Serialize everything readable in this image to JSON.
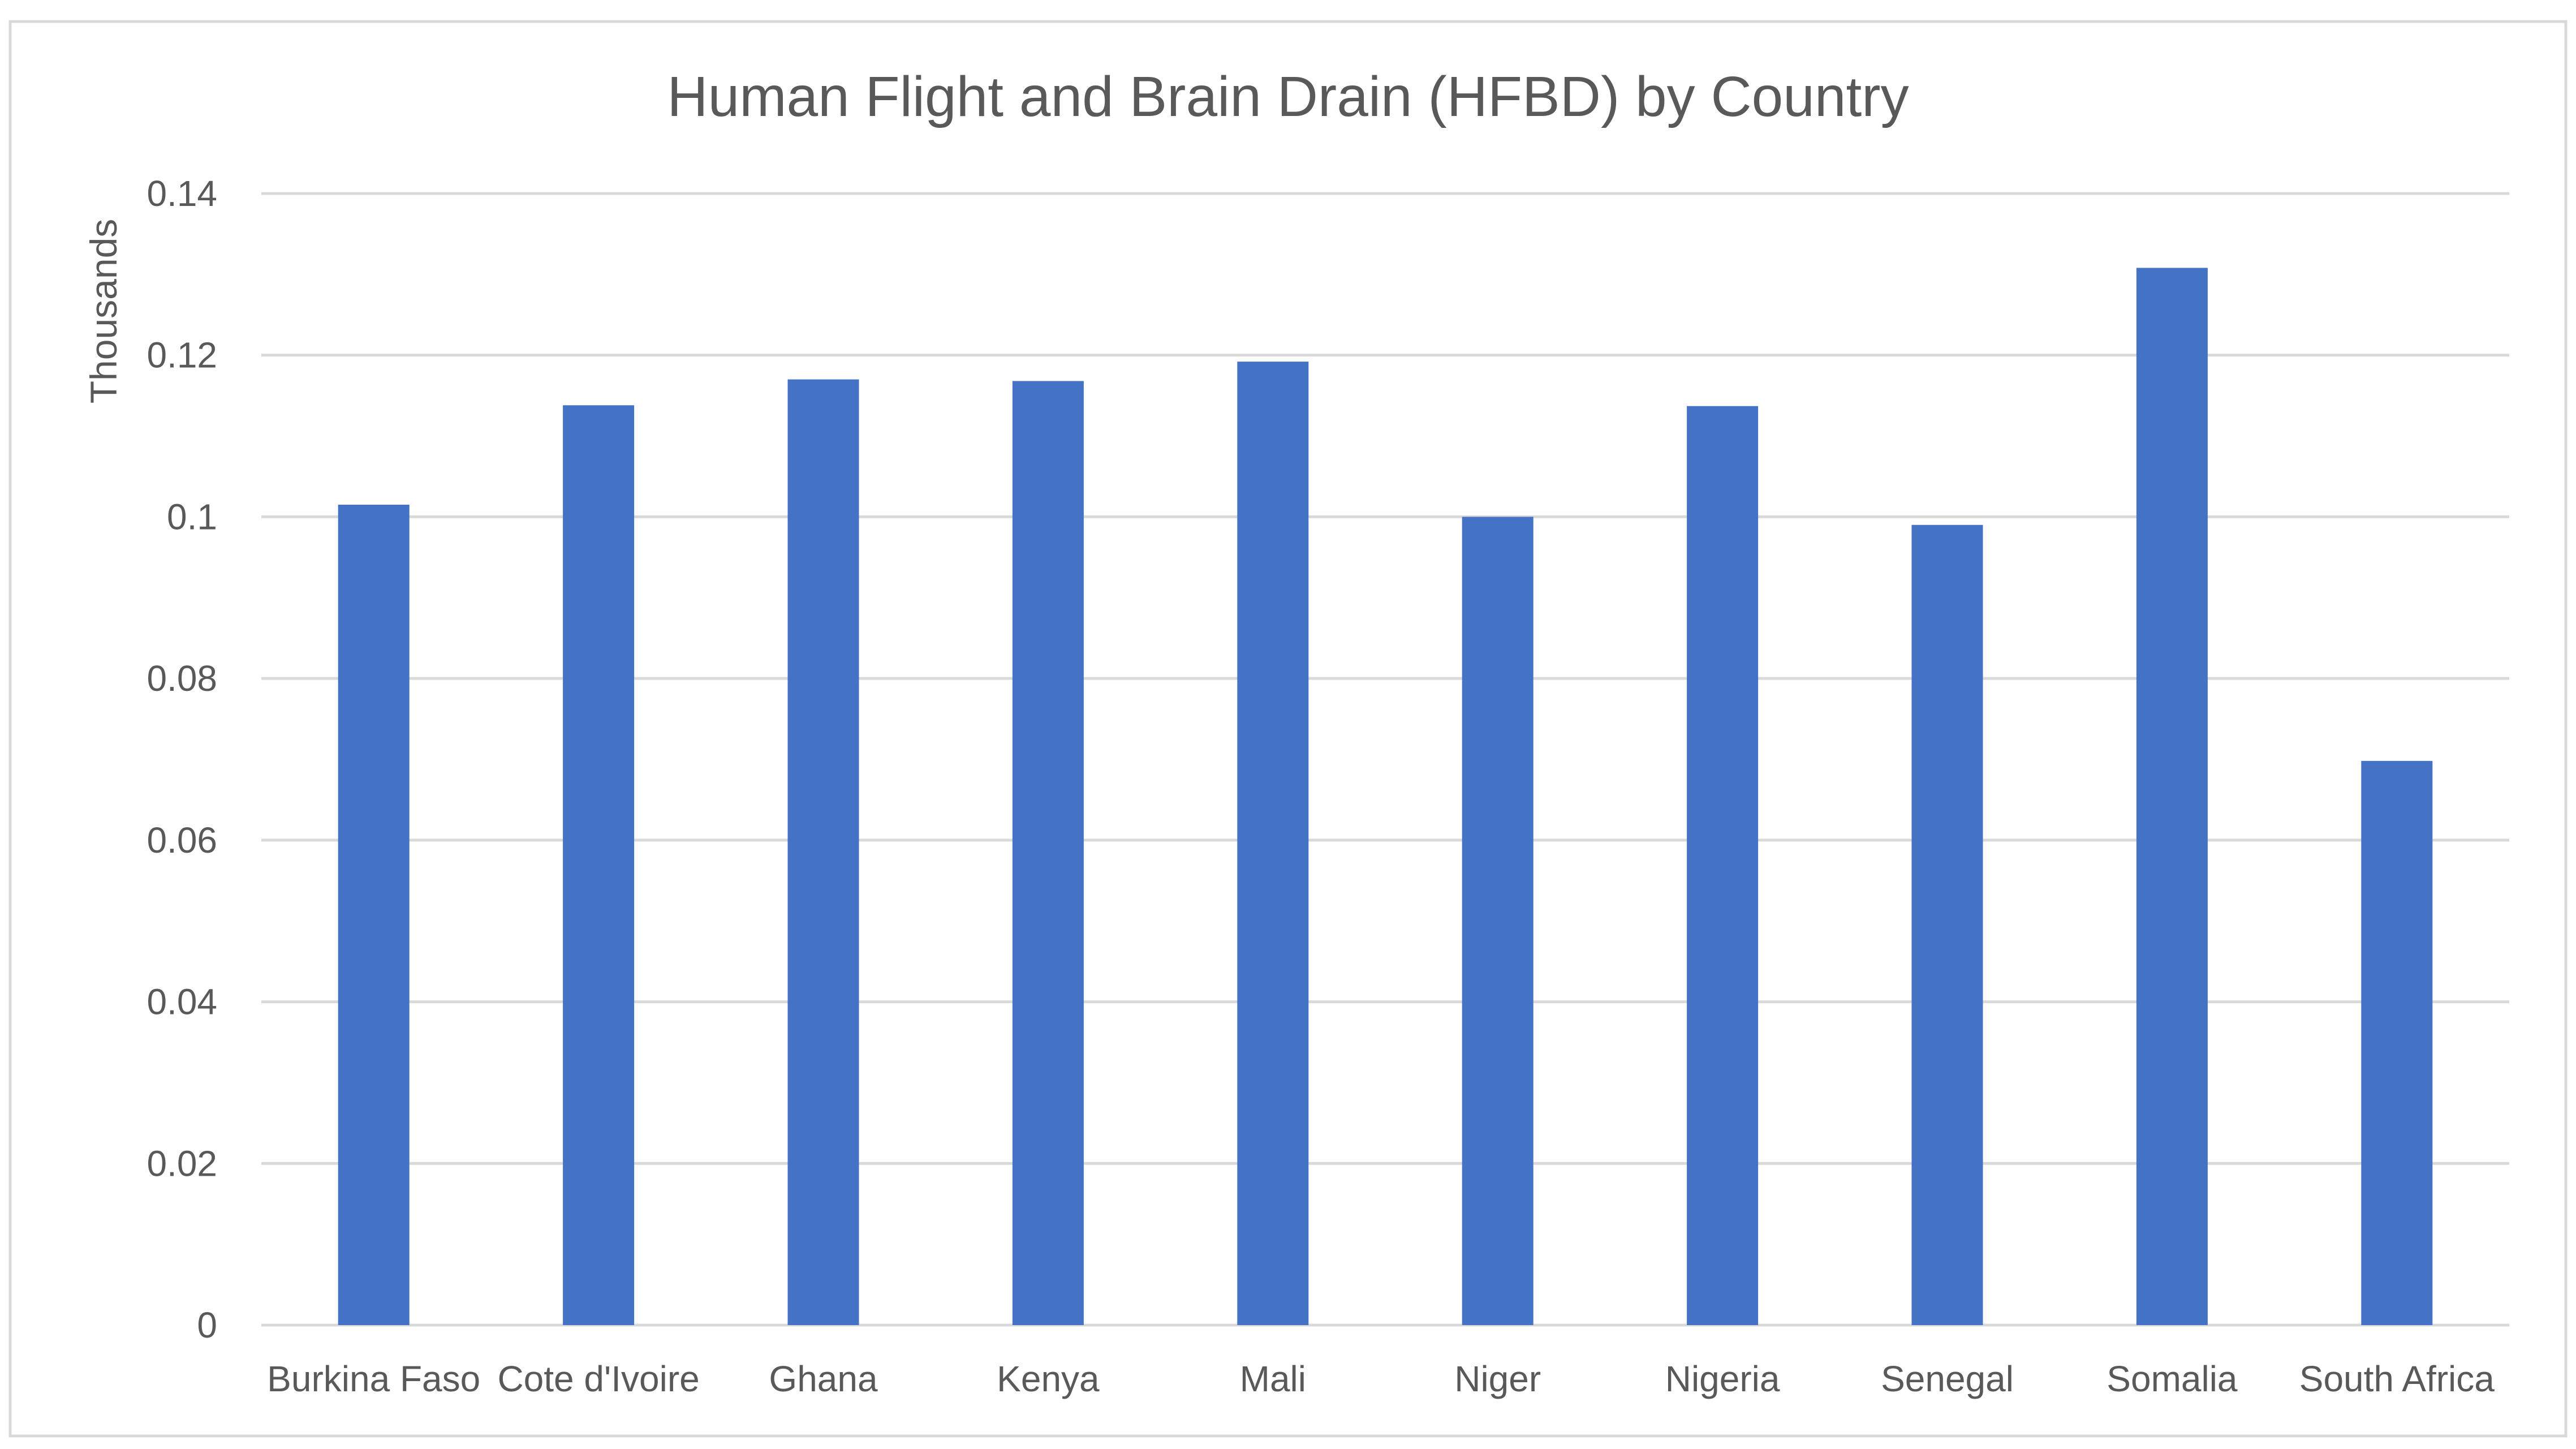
{
  "chart_data": {
    "type": "bar",
    "title": "Human Flight and Brain Drain (HFBD) by Country",
    "xlabel": "",
    "ylabel": "Thousands",
    "categories": [
      "Burkina Faso",
      "Cote d'Ivoire",
      "Ghana",
      "Kenya",
      "Mali",
      "Niger",
      "Nigeria",
      "Senegal",
      "Somalia",
      "South Africa"
    ],
    "values": [
      0.1015,
      0.1138,
      0.117,
      0.1168,
      0.1192,
      0.1,
      0.1137,
      0.099,
      0.1308,
      0.0698
    ],
    "ylim": [
      0,
      0.14
    ],
    "yticks": [
      0,
      0.02,
      0.04,
      0.06,
      0.08,
      0.1,
      0.12,
      0.14
    ],
    "ytick_labels": [
      "0",
      "0.02",
      "0.04",
      "0.06",
      "0.08",
      "0.1",
      "0.12",
      "0.14"
    ],
    "grid": true,
    "legend": "none",
    "bar_color": "#4472c4"
  }
}
